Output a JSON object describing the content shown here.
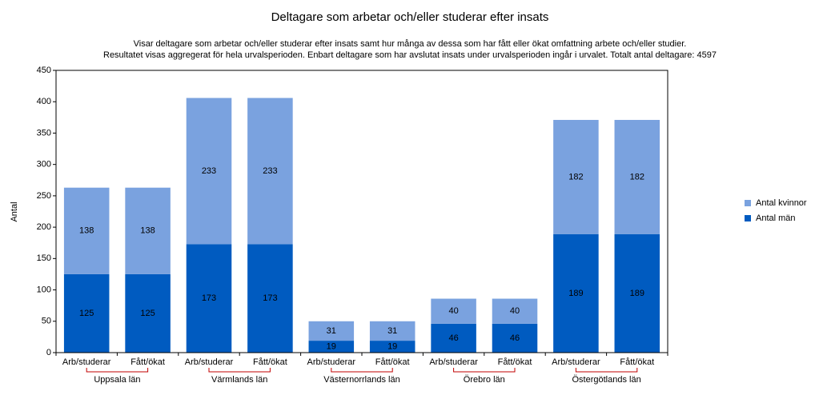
{
  "chart_data": {
    "type": "stacked_bar",
    "title": "Deltagare som arbetar och/eller studerar efter insats",
    "subtitle": [
      "Visar deltagare som arbetar och/eller studerar efter insats samt hur många av dessa som har fått eller ökat omfattning arbete och/eller studier.",
      "Resultatet visas aggregerat för hela urvalsperioden. Enbart deltagare som har avslutat insats under urvalsperioden ingår i urvalet. Totalt antal deltagare: 4597"
    ],
    "y_label": "Antal",
    "categories": [
      "Arb/studerar",
      "Fått/ökat",
      "Arb/studerar",
      "Fått/ökat",
      "Arb/studerar",
      "Fått/ökat",
      "Arb/studerar",
      "Fått/ökat",
      "Arb/studerar",
      "Fått/ökat"
    ],
    "groups": [
      "Uppsala län",
      "Värmlands län",
      "Västernorrlands län",
      "Örebro län",
      "Östergötlands län"
    ],
    "series": [
      {
        "name": "Antal män",
        "color": "#005bc0",
        "values": [
          125,
          125,
          173,
          173,
          19,
          19,
          46,
          46,
          189,
          189
        ]
      },
      {
        "name": "Antal kvinnor",
        "color": "#7aa2df",
        "values": [
          138,
          138,
          233,
          233,
          31,
          31,
          40,
          40,
          182,
          182
        ]
      }
    ],
    "ylim": [
      0,
      450
    ],
    "yticks": [
      0,
      50,
      100,
      150,
      200,
      250,
      300,
      350,
      400,
      450
    ],
    "group_bracket_color": "#c00000"
  }
}
